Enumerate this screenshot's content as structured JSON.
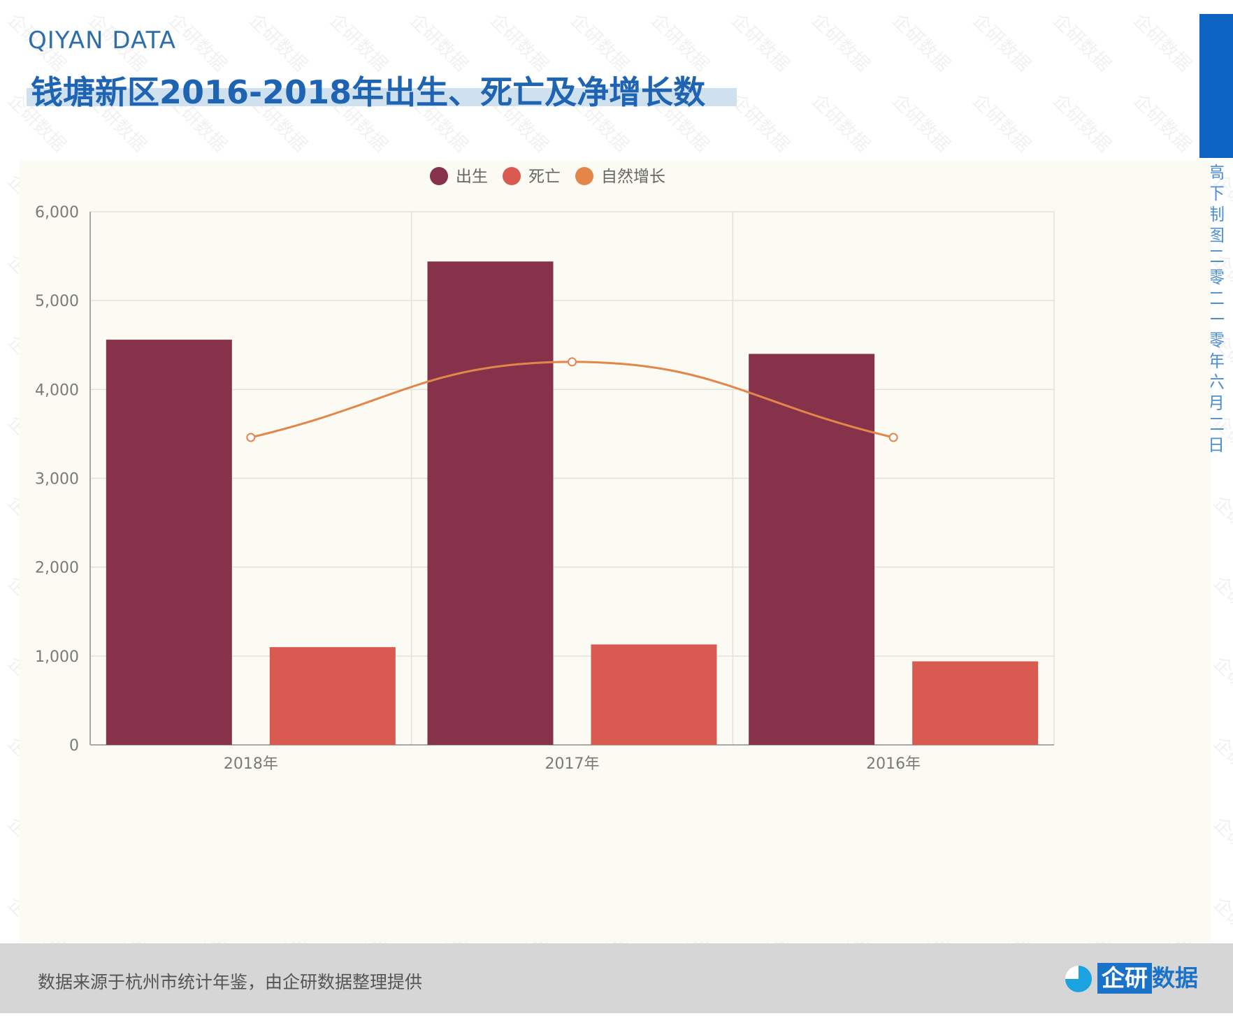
{
  "header": {
    "brand": "QIYAN DATA",
    "title": "钱塘新区2016-2018年出生、死亡及净增长数"
  },
  "side": {
    "text": "高下制图 二零二一零年六月二日"
  },
  "footer": {
    "source": "数据来源于杭州市统计年鉴，由企研数据整理提供",
    "logo_box": "企研",
    "logo_text": "数据"
  },
  "watermark": "企研数据",
  "colors": {
    "birth": "#85324a",
    "death": "#d85a50",
    "growth": "#e3864a",
    "grid": "#e4e2d8",
    "axis": "#a8a8a8",
    "tick": "#7a7a7a"
  },
  "chart_data": {
    "type": "bar",
    "categories": [
      "2018年",
      "2017年",
      "2016年"
    ],
    "series": [
      {
        "name": "出生",
        "type": "bar",
        "values": [
          4560,
          5440,
          4400
        ]
      },
      {
        "name": "死亡",
        "type": "bar",
        "values": [
          1100,
          1130,
          940
        ]
      },
      {
        "name": "自然增长",
        "type": "line",
        "values": [
          3460,
          4310,
          3460
        ]
      }
    ],
    "ylim": [
      0,
      6000
    ],
    "yticks": [
      0,
      1000,
      2000,
      3000,
      4000,
      5000,
      6000
    ],
    "ytick_labels": [
      "0",
      "1,000",
      "2,000",
      "3,000",
      "4,000",
      "5,000",
      "6,000"
    ],
    "legend_position": "top-center",
    "grid": true
  }
}
